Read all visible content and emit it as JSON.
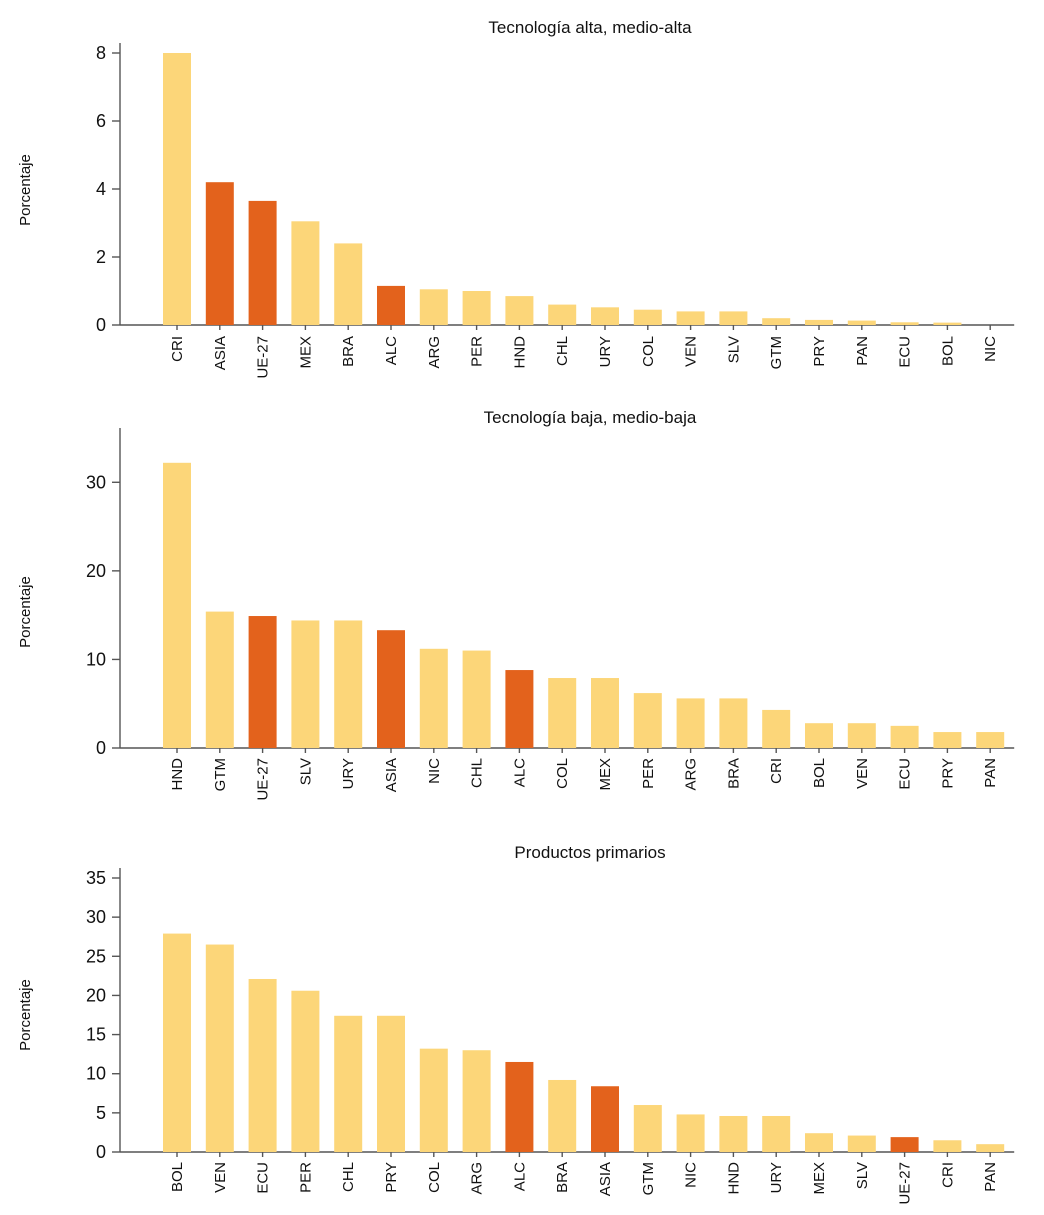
{
  "colors": {
    "normal": "#fcd679",
    "highlight": "#e3621c",
    "axis": "#555555"
  },
  "chart_data": [
    {
      "type": "bar",
      "title": "Tecnología alta, medio-alta",
      "ylabel": "Porcentaje",
      "ylim": [
        0,
        8
      ],
      "yticks": [
        0,
        2,
        4,
        6,
        8
      ],
      "categories": [
        "CRI",
        "ASIA",
        "UE-27",
        "MEX",
        "BRA",
        "ALC",
        "ARG",
        "PER",
        "HND",
        "CHL",
        "URY",
        "COL",
        "VEN",
        "SLV",
        "GTM",
        "PRY",
        "PAN",
        "ECU",
        "BOL",
        "NIC"
      ],
      "values": [
        8.0,
        4.2,
        3.65,
        3.05,
        2.4,
        1.15,
        1.05,
        1.0,
        0.85,
        0.6,
        0.52,
        0.45,
        0.4,
        0.4,
        0.2,
        0.15,
        0.13,
        0.08,
        0.07,
        0.0
      ],
      "highlighted": [
        "ASIA",
        "UE-27",
        "ALC"
      ]
    },
    {
      "type": "bar",
      "title": "Tecnología baja, medio-baja",
      "ylabel": "Porcentaje",
      "ylim": [
        0,
        35
      ],
      "yticks": [
        0,
        10,
        20,
        30
      ],
      "categories": [
        "HND",
        "GTM",
        "UE-27",
        "SLV",
        "URY",
        "ASIA",
        "NIC",
        "CHL",
        "ALC",
        "COL",
        "MEX",
        "PER",
        "ARG",
        "BRA",
        "CRI",
        "BOL",
        "VEN",
        "ECU",
        "PRY",
        "PAN"
      ],
      "values": [
        32.2,
        15.4,
        14.9,
        14.4,
        14.4,
        13.3,
        11.2,
        11.0,
        8.8,
        7.9,
        7.9,
        6.2,
        5.6,
        5.6,
        4.3,
        2.8,
        2.8,
        2.5,
        1.8,
        1.8
      ],
      "highlighted": [
        "UE-27",
        "ASIA",
        "ALC"
      ]
    },
    {
      "type": "bar",
      "title": "Productos primarios",
      "ylabel": "Porcentaje",
      "ylim": [
        0,
        35
      ],
      "yticks": [
        0,
        5,
        10,
        15,
        20,
        25,
        30,
        35
      ],
      "categories": [
        "BOL",
        "VEN",
        "ECU",
        "PER",
        "CHL",
        "PRY",
        "COL",
        "ARG",
        "ALC",
        "BRA",
        "ASIA",
        "GTM",
        "NIC",
        "HND",
        "URY",
        "MEX",
        "SLV",
        "UE-27",
        "CRI",
        "PAN"
      ],
      "values": [
        27.9,
        26.5,
        22.1,
        20.6,
        17.4,
        17.4,
        13.2,
        13.0,
        11.5,
        9.2,
        8.4,
        6.0,
        4.8,
        4.6,
        4.6,
        2.4,
        2.1,
        1.9,
        1.5,
        1.0
      ],
      "highlighted": [
        "ALC",
        "ASIA",
        "UE-27"
      ]
    }
  ]
}
